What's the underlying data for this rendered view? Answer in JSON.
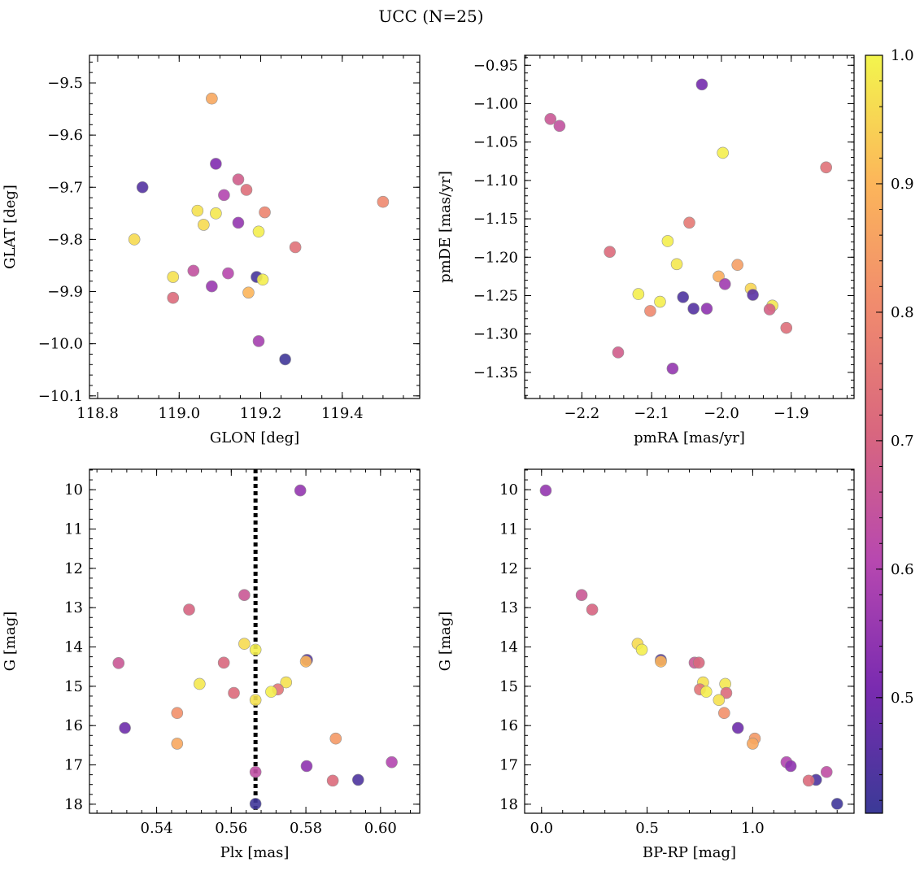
{
  "figure": {
    "title": "UCC (N=25)"
  },
  "colormap": {
    "name": "plasma",
    "stops": [
      "#3b3a97",
      "#7a2bb0",
      "#b748b0",
      "#d8667f",
      "#f08a6e",
      "#fcb65a",
      "#f3f54d"
    ],
    "range": [
      0.41,
      1.0
    ],
    "ticks": [
      "0.5",
      "0.6",
      "0.7",
      "0.8",
      "0.9",
      "1.0"
    ],
    "tick_values": [
      0.5,
      0.6,
      0.7,
      0.8,
      0.9,
      1.0
    ]
  },
  "chart_data": [
    {
      "type": "scatter",
      "xlabel": "GLON [deg]",
      "ylabel": "GLAT [deg]",
      "xlim": [
        118.78,
        119.59
      ],
      "ylim": [
        -10.105,
        -9.447
      ],
      "y_inverted": false,
      "xticks": [
        118.8,
        119.0,
        119.2,
        119.4
      ],
      "xtick_labels": [
        "118.8",
        "119.0",
        "119.2",
        "119.4"
      ],
      "yticks": [
        -9.5,
        -9.6,
        -9.7,
        -9.8,
        -9.9,
        -10.0,
        -10.1
      ],
      "ytick_labels": [
        "−9.5",
        "−9.6",
        "−9.7",
        "−9.8",
        "−9.9",
        "−10.0",
        "−10.1"
      ],
      "x_minor": 0.05,
      "y_minor": 0.02,
      "points": [
        {
          "x": 119.08,
          "y": -9.53,
          "c": 0.87
        },
        {
          "x": 119.09,
          "y": -9.655,
          "c": 0.52
        },
        {
          "x": 119.145,
          "y": -9.685,
          "c": 0.68
        },
        {
          "x": 118.91,
          "y": -9.7,
          "c": 0.45
        },
        {
          "x": 119.11,
          "y": -9.715,
          "c": 0.6
        },
        {
          "x": 119.165,
          "y": -9.705,
          "c": 0.73
        },
        {
          "x": 119.5,
          "y": -9.728,
          "c": 0.8
        },
        {
          "x": 119.045,
          "y": -9.745,
          "c": 0.97
        },
        {
          "x": 119.09,
          "y": -9.75,
          "c": 0.98
        },
        {
          "x": 119.21,
          "y": -9.748,
          "c": 0.79
        },
        {
          "x": 119.06,
          "y": -9.772,
          "c": 0.96
        },
        {
          "x": 119.145,
          "y": -9.768,
          "c": 0.55
        },
        {
          "x": 119.195,
          "y": -9.785,
          "c": 0.99
        },
        {
          "x": 118.89,
          "y": -9.8,
          "c": 0.96
        },
        {
          "x": 119.285,
          "y": -9.815,
          "c": 0.74
        },
        {
          "x": 119.035,
          "y": -9.86,
          "c": 0.64
        },
        {
          "x": 119.12,
          "y": -9.865,
          "c": 0.61
        },
        {
          "x": 118.985,
          "y": -9.872,
          "c": 0.97
        },
        {
          "x": 119.19,
          "y": -9.872,
          "c": 0.43
        },
        {
          "x": 119.205,
          "y": -9.877,
          "c": 0.99
        },
        {
          "x": 119.08,
          "y": -9.89,
          "c": 0.56
        },
        {
          "x": 119.17,
          "y": -9.902,
          "c": 0.9
        },
        {
          "x": 118.985,
          "y": -9.912,
          "c": 0.72
        },
        {
          "x": 119.195,
          "y": -9.995,
          "c": 0.58
        },
        {
          "x": 119.26,
          "y": -10.03,
          "c": 0.42
        }
      ]
    },
    {
      "type": "scatter",
      "xlabel": "pmRA [mas/yr]",
      "ylabel": "pmDE [mas/yr]",
      "xlim": [
        -2.282,
        -1.81
      ],
      "ylim": [
        -1.384,
        -0.937
      ],
      "y_inverted": false,
      "xticks": [
        -2.2,
        -2.1,
        -2.0,
        -1.9
      ],
      "xtick_labels": [
        "−2.2",
        "−2.1",
        "−2.0",
        "−1.9"
      ],
      "yticks": [
        -0.95,
        -1.0,
        -1.05,
        -1.1,
        -1.15,
        -1.2,
        -1.25,
        -1.3,
        -1.35
      ],
      "ytick_labels": [
        "−0.95",
        "−1.00",
        "−1.05",
        "−1.10",
        "−1.15",
        "−1.20",
        "−1.25",
        "−1.30",
        "−1.35"
      ],
      "x_minor": 0.02,
      "y_minor": 0.01,
      "points": [
        {
          "x": -2.028,
          "y": -0.975,
          "c": 0.5
        },
        {
          "x": -2.245,
          "y": -1.02,
          "c": 0.66
        },
        {
          "x": -2.232,
          "y": -1.029,
          "c": 0.64
        },
        {
          "x": -1.998,
          "y": -1.064,
          "c": 0.99
        },
        {
          "x": -1.85,
          "y": -1.083,
          "c": 0.74
        },
        {
          "x": -2.046,
          "y": -1.155,
          "c": 0.76
        },
        {
          "x": -2.077,
          "y": -1.179,
          "c": 0.99
        },
        {
          "x": -2.16,
          "y": -1.193,
          "c": 0.72
        },
        {
          "x": -2.064,
          "y": -1.209,
          "c": 0.98
        },
        {
          "x": -1.977,
          "y": -1.21,
          "c": 0.85
        },
        {
          "x": -2.004,
          "y": -1.225,
          "c": 0.88
        },
        {
          "x": -1.995,
          "y": -1.235,
          "c": 0.57
        },
        {
          "x": -1.958,
          "y": -1.241,
          "c": 0.95
        },
        {
          "x": -2.119,
          "y": -1.248,
          "c": 0.99
        },
        {
          "x": -1.955,
          "y": -1.249,
          "c": 0.46
        },
        {
          "x": -2.055,
          "y": -1.252,
          "c": 0.44
        },
        {
          "x": -2.088,
          "y": -1.258,
          "c": 0.99
        },
        {
          "x": -1.927,
          "y": -1.263,
          "c": 0.98
        },
        {
          "x": -2.04,
          "y": -1.267,
          "c": 0.45
        },
        {
          "x": -2.021,
          "y": -1.267,
          "c": 0.54
        },
        {
          "x": -1.931,
          "y": -1.268,
          "c": 0.69
        },
        {
          "x": -2.102,
          "y": -1.27,
          "c": 0.8
        },
        {
          "x": -1.907,
          "y": -1.292,
          "c": 0.73
        },
        {
          "x": -2.148,
          "y": -1.324,
          "c": 0.68
        },
        {
          "x": -2.07,
          "y": -1.345,
          "c": 0.55
        }
      ]
    },
    {
      "type": "scatter",
      "xlabel": "Plx [mas]",
      "ylabel": "G [mag]",
      "xlim": [
        0.522,
        0.6105
      ],
      "ylim": [
        18.23,
        9.48
      ],
      "y_inverted": true,
      "xticks": [
        0.54,
        0.56,
        0.58,
        0.6
      ],
      "xtick_labels": [
        "0.54",
        "0.56",
        "0.58",
        "0.60"
      ],
      "yticks": [
        10,
        11,
        12,
        13,
        14,
        15,
        16,
        17,
        18
      ],
      "ytick_labels": [
        "10",
        "11",
        "12",
        "13",
        "14",
        "15",
        "16",
        "17",
        "18"
      ],
      "x_minor": 0.004,
      "y_minor": 0.25,
      "vline": {
        "x": 0.5665
      },
      "points": [
        {
          "x": 0.5785,
          "y": 10.02,
          "c": 0.55
        },
        {
          "x": 0.5635,
          "y": 12.68,
          "c": 0.66
        },
        {
          "x": 0.5487,
          "y": 13.05,
          "c": 0.7
        },
        {
          "x": 0.5635,
          "y": 13.92,
          "c": 0.96
        },
        {
          "x": 0.5665,
          "y": 14.07,
          "c": 0.99
        },
        {
          "x": 0.5803,
          "y": 14.33,
          "c": 0.45
        },
        {
          "x": 0.58,
          "y": 14.37,
          "c": 0.9
        },
        {
          "x": 0.5298,
          "y": 14.41,
          "c": 0.66
        },
        {
          "x": 0.558,
          "y": 14.4,
          "c": 0.71
        },
        {
          "x": 0.5747,
          "y": 14.9,
          "c": 0.97
        },
        {
          "x": 0.5515,
          "y": 14.94,
          "c": 0.98
        },
        {
          "x": 0.5725,
          "y": 15.08,
          "c": 0.75
        },
        {
          "x": 0.5707,
          "y": 15.14,
          "c": 0.99
        },
        {
          "x": 0.5607,
          "y": 15.17,
          "c": 0.72
        },
        {
          "x": 0.5665,
          "y": 15.35,
          "c": 0.97
        },
        {
          "x": 0.5455,
          "y": 15.68,
          "c": 0.82
        },
        {
          "x": 0.5315,
          "y": 16.06,
          "c": 0.49
        },
        {
          "x": 0.588,
          "y": 16.33,
          "c": 0.84
        },
        {
          "x": 0.5455,
          "y": 16.46,
          "c": 0.87
        },
        {
          "x": 0.603,
          "y": 16.93,
          "c": 0.6
        },
        {
          "x": 0.5802,
          "y": 17.03,
          "c": 0.54
        },
        {
          "x": 0.5665,
          "y": 17.18,
          "c": 0.63
        },
        {
          "x": 0.594,
          "y": 17.38,
          "c": 0.44
        },
        {
          "x": 0.5872,
          "y": 17.4,
          "c": 0.72
        },
        {
          "x": 0.5665,
          "y": 17.99,
          "c": 0.42
        }
      ]
    },
    {
      "type": "scatter",
      "xlabel": "BP-RP [mag]",
      "ylabel": "G [mag]",
      "xlim": [
        -0.08,
        1.48
      ],
      "ylim": [
        18.23,
        9.48
      ],
      "y_inverted": true,
      "xticks": [
        0.0,
        0.5,
        1.0
      ],
      "xtick_labels": [
        "0.0",
        "0.5",
        "1.0"
      ],
      "yticks": [
        10,
        11,
        12,
        13,
        14,
        15,
        16,
        17,
        18
      ],
      "ytick_labels": [
        "10",
        "11",
        "12",
        "13",
        "14",
        "15",
        "16",
        "17",
        "18"
      ],
      "x_minor": 0.1,
      "y_minor": 0.25,
      "points": [
        {
          "x": 0.02,
          "y": 10.02,
          "c": 0.55
        },
        {
          "x": 0.19,
          "y": 12.68,
          "c": 0.66
        },
        {
          "x": 0.24,
          "y": 13.05,
          "c": 0.7
        },
        {
          "x": 0.455,
          "y": 13.92,
          "c": 0.96
        },
        {
          "x": 0.475,
          "y": 14.07,
          "c": 0.99
        },
        {
          "x": 0.565,
          "y": 14.33,
          "c": 0.45
        },
        {
          "x": 0.565,
          "y": 14.37,
          "c": 0.9
        },
        {
          "x": 0.725,
          "y": 14.4,
          "c": 0.66
        },
        {
          "x": 0.745,
          "y": 14.4,
          "c": 0.71
        },
        {
          "x": 0.765,
          "y": 14.9,
          "c": 0.97
        },
        {
          "x": 0.87,
          "y": 14.94,
          "c": 0.98
        },
        {
          "x": 0.75,
          "y": 15.08,
          "c": 0.75
        },
        {
          "x": 0.78,
          "y": 15.14,
          "c": 0.99
        },
        {
          "x": 0.875,
          "y": 15.17,
          "c": 0.72
        },
        {
          "x": 0.84,
          "y": 15.35,
          "c": 0.97
        },
        {
          "x": 0.865,
          "y": 15.68,
          "c": 0.82
        },
        {
          "x": 0.93,
          "y": 16.06,
          "c": 0.49
        },
        {
          "x": 1.01,
          "y": 16.33,
          "c": 0.84
        },
        {
          "x": 1.0,
          "y": 16.46,
          "c": 0.87
        },
        {
          "x": 1.16,
          "y": 16.93,
          "c": 0.6
        },
        {
          "x": 1.18,
          "y": 17.03,
          "c": 0.54
        },
        {
          "x": 1.35,
          "y": 17.18,
          "c": 0.63
        },
        {
          "x": 1.3,
          "y": 17.38,
          "c": 0.44
        },
        {
          "x": 1.265,
          "y": 17.4,
          "c": 0.72
        },
        {
          "x": 1.4,
          "y": 17.99,
          "c": 0.42
        }
      ]
    }
  ]
}
